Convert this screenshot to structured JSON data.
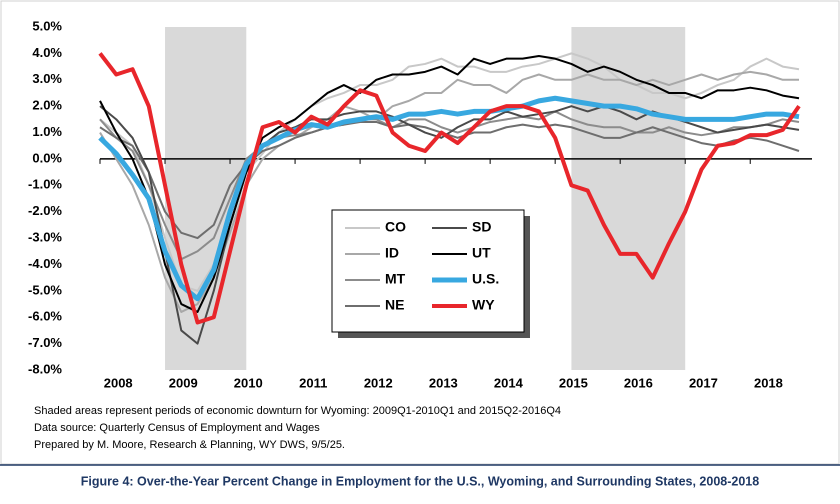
{
  "chart_data": {
    "type": "line",
    "caption": "Figure 4: Over-the-Year Percent Change in Employment for the U.S., Wyoming, and Surrounding States, 2008-2018",
    "notes": [
      "Shaded areas represent periods of economic downturn for Wyoming: 2009Q1-2010Q1 and 2015Q2-2016Q4",
      "Data source: Quarterly Census of Employment and Wages",
      "Prepared by M. Moore, Research & Planning, WY DWS, 9/5/25."
    ],
    "legend": "center",
    "shaded": [
      [
        2009,
        2010.25
      ],
      [
        2015.25,
        2017
      ]
    ],
    "xlim": [
      2008,
      2018.95
    ],
    "xticks": [
      2008,
      2009,
      2010,
      2011,
      2012,
      2013,
      2014,
      2015,
      2016,
      2017,
      2018
    ],
    "ylim": [
      -8,
      5
    ],
    "yticks": [
      {
        "value": 5,
        "label": "5.0%"
      },
      {
        "value": 4,
        "label": "4.0%"
      },
      {
        "value": 3,
        "label": "3.0%"
      },
      {
        "value": 2,
        "label": "2.0%"
      },
      {
        "value": 1,
        "label": "1.0%"
      },
      {
        "value": 0,
        "label": "0.0%"
      },
      {
        "value": -1,
        "label": "-1.0%"
      },
      {
        "value": -2,
        "label": "-2.0%"
      },
      {
        "value": -3,
        "label": "-3.0%"
      },
      {
        "value": -4,
        "label": "-4.0%"
      },
      {
        "value": -5,
        "label": "-5.0%"
      },
      {
        "value": -6,
        "label": "-6.0%"
      },
      {
        "value": -7,
        "label": "-7.0%"
      },
      {
        "value": -8,
        "label": "-8.0%"
      }
    ],
    "x": [
      2008,
      2008.25,
      2008.5,
      2008.75,
      2009,
      2009.25,
      2009.5,
      2009.75,
      2010,
      2010.25,
      2010.5,
      2010.75,
      2011,
      2011.25,
      2011.5,
      2011.75,
      2012,
      2012.25,
      2012.5,
      2012.75,
      2013,
      2013.25,
      2013.5,
      2013.75,
      2014,
      2014.25,
      2014.5,
      2014.75,
      2015,
      2015.25,
      2015.5,
      2015.75,
      2016,
      2016.25,
      2016.5,
      2016.75,
      2017,
      2017.25,
      2017.5,
      2017.75,
      2018,
      2018.25,
      2018.5,
      2018.75
    ],
    "series": [
      {
        "name": "CO",
        "color": "#c8c8c8",
        "linewidth": 2,
        "values": [
          1.5,
          1.0,
          0.5,
          -1.0,
          -3.0,
          -4.8,
          -5.0,
          -4.0,
          -2.5,
          -0.5,
          0.2,
          1.0,
          1.5,
          2.0,
          2.3,
          2.5,
          2.8,
          2.8,
          3.0,
          3.5,
          3.6,
          3.8,
          3.5,
          3.5,
          3.3,
          3.3,
          3.5,
          3.6,
          3.8,
          4.0,
          3.8,
          3.5,
          3.0,
          2.8,
          2.5,
          2.5,
          2.3,
          2.5,
          2.8,
          3.0,
          3.5,
          3.8,
          3.5,
          3.4
        ]
      },
      {
        "name": "ID",
        "color": "#a8a8a8",
        "linewidth": 2,
        "values": [
          1.0,
          0.0,
          -1.0,
          -2.5,
          -4.5,
          -5.8,
          -5.5,
          -4.5,
          -2.8,
          -1.0,
          0.0,
          0.5,
          0.8,
          1.2,
          1.5,
          2.0,
          1.8,
          1.5,
          2.0,
          2.2,
          2.5,
          2.5,
          3.0,
          2.8,
          2.8,
          2.5,
          3.0,
          3.2,
          3.0,
          3.0,
          3.2,
          3.0,
          3.0,
          2.8,
          3.0,
          2.8,
          3.0,
          3.2,
          3.0,
          3.2,
          3.3,
          3.2,
          3.0,
          3.0
        ]
      },
      {
        "name": "MT",
        "color": "#8c8c8c",
        "linewidth": 2,
        "values": [
          1.5,
          0.8,
          0.3,
          -1.0,
          -2.5,
          -3.8,
          -3.5,
          -3.0,
          -1.5,
          0.0,
          0.5,
          0.8,
          0.9,
          1.0,
          1.2,
          1.3,
          1.5,
          1.5,
          1.2,
          1.5,
          1.5,
          1.2,
          1.0,
          1.2,
          1.4,
          1.5,
          1.6,
          1.5,
          1.8,
          1.5,
          1.3,
          1.2,
          1.2,
          1.0,
          1.0,
          1.2,
          1.0,
          0.9,
          1.0,
          1.2,
          1.2,
          1.3,
          1.5,
          1.4
        ]
      },
      {
        "name": "NE",
        "color": "#6e6e6e",
        "linewidth": 2,
        "values": [
          1.2,
          0.8,
          0.5,
          -0.5,
          -2.0,
          -2.8,
          -3.0,
          -2.5,
          -1.0,
          -0.2,
          0.3,
          0.5,
          0.8,
          1.0,
          1.2,
          1.3,
          1.4,
          1.4,
          1.2,
          1.3,
          1.2,
          1.0,
          0.8,
          1.0,
          1.0,
          1.2,
          1.3,
          1.2,
          1.3,
          1.2,
          1.0,
          0.8,
          0.8,
          1.0,
          1.2,
          1.0,
          0.8,
          0.6,
          0.5,
          0.7,
          0.8,
          0.7,
          0.5,
          0.3
        ]
      },
      {
        "name": "SD",
        "color": "#4a4a4a",
        "linewidth": 2,
        "values": [
          2.0,
          1.5,
          0.8,
          -0.5,
          -3.5,
          -6.5,
          -7.0,
          -5.0,
          -2.5,
          -0.5,
          0.5,
          1.0,
          1.2,
          1.5,
          1.5,
          1.7,
          1.8,
          1.8,
          1.6,
          1.3,
          1.0,
          0.8,
          1.2,
          1.5,
          1.5,
          1.8,
          1.6,
          1.7,
          1.8,
          2.0,
          1.8,
          2.0,
          1.8,
          1.5,
          1.8,
          1.6,
          1.4,
          1.2,
          1.0,
          1.1,
          1.2,
          1.3,
          1.2,
          1.1
        ]
      },
      {
        "name": "UT",
        "color": "#000000",
        "linewidth": 2,
        "values": [
          2.2,
          1.0,
          0.0,
          -1.5,
          -4.0,
          -5.5,
          -5.8,
          -4.5,
          -2.5,
          -0.5,
          0.8,
          1.2,
          1.5,
          2.0,
          2.5,
          2.8,
          2.5,
          3.0,
          3.2,
          3.2,
          3.3,
          3.5,
          3.2,
          3.8,
          3.6,
          3.8,
          3.8,
          3.9,
          3.8,
          3.6,
          3.3,
          3.5,
          3.3,
          3.0,
          2.8,
          2.5,
          2.5,
          2.3,
          2.6,
          2.6,
          2.7,
          2.6,
          2.4,
          2.3
        ]
      },
      {
        "name": "U.S.",
        "color": "#38a8e0",
        "linewidth": 5,
        "values": [
          0.8,
          0.2,
          -0.6,
          -1.5,
          -3.5,
          -4.8,
          -5.3,
          -4.2,
          -2.0,
          -0.2,
          0.5,
          0.8,
          1.1,
          1.3,
          1.2,
          1.4,
          1.5,
          1.6,
          1.5,
          1.7,
          1.7,
          1.8,
          1.7,
          1.8,
          1.8,
          1.9,
          2.0,
          2.2,
          2.3,
          2.2,
          2.1,
          2.0,
          2.0,
          1.9,
          1.7,
          1.6,
          1.5,
          1.5,
          1.5,
          1.5,
          1.6,
          1.7,
          1.7,
          1.6
        ]
      },
      {
        "name": "WY",
        "color": "#e8262b",
        "linewidth": 4,
        "values": [
          4.0,
          3.2,
          3.4,
          2.0,
          -1.0,
          -4.0,
          -6.2,
          -6.0,
          -3.5,
          -1.0,
          1.2,
          1.4,
          1.0,
          1.6,
          1.3,
          2.0,
          2.6,
          2.4,
          1.0,
          0.5,
          0.3,
          1.0,
          0.6,
          1.2,
          1.8,
          2.0,
          2.0,
          1.8,
          0.8,
          -1.0,
          -1.2,
          -2.5,
          -3.6,
          -3.6,
          -4.5,
          -3.2,
          -2.0,
          -0.4,
          0.5,
          0.6,
          0.9,
          0.9,
          1.1,
          2.0
        ]
      }
    ]
  }
}
